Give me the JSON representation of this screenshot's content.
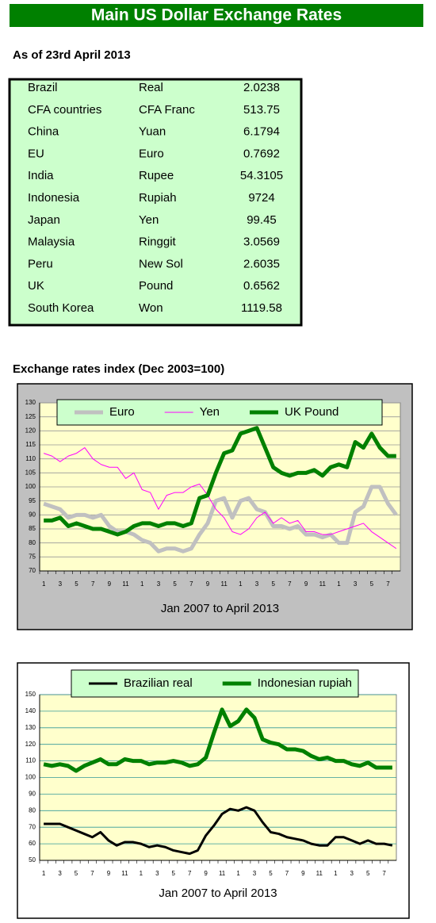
{
  "title": "Main US Dollar Exchange Rates",
  "as_of": "As of 23rd April 2013",
  "table": {
    "rows": [
      [
        "Brazil",
        "Real",
        2.0238
      ],
      [
        "CFA countries",
        "CFA Franc",
        513.75
      ],
      [
        "China",
        "Yuan",
        6.1794
      ],
      [
        "EU",
        "Euro",
        0.7692
      ],
      [
        "India",
        "Rupee",
        54.3105
      ],
      [
        "Indonesia",
        "Rupiah",
        9724
      ],
      [
        "Japan",
        "Yen",
        99.45
      ],
      [
        "Malaysia",
        "Ringgit",
        3.0569
      ],
      [
        "Peru",
        "New Sol",
        2.6035
      ],
      [
        "UK",
        "Pound",
        0.6562
      ],
      [
        "South Korea",
        "Won",
        1119.58
      ]
    ]
  },
  "index_heading": "Exchange rates index (Dec 2003=100)",
  "chart_data": [
    {
      "type": "line",
      "xlabel": "Jan 2007 to April 2013",
      "categories": [
        "1",
        null,
        "3",
        null,
        "5",
        null,
        "7",
        null,
        "9",
        null,
        "11",
        null,
        "1",
        null,
        "3",
        null,
        "5",
        null,
        "7",
        null,
        "9",
        null,
        "11",
        null,
        "1",
        null,
        "3",
        null,
        "5",
        null,
        "7",
        null,
        "9",
        null,
        "11",
        null,
        "1",
        null,
        "3",
        null,
        "5",
        null,
        "7",
        null
      ],
      "series": [
        {
          "name": "Euro",
          "color": "#c0c0c0",
          "values": [
            94,
            93,
            92,
            89,
            90,
            90,
            89,
            90,
            86,
            84,
            84,
            83,
            81,
            80,
            77,
            78,
            78,
            77,
            78,
            83,
            87,
            95,
            96,
            89,
            95,
            96,
            92,
            91,
            86,
            86,
            85,
            86,
            83,
            83,
            82,
            83,
            80,
            80,
            91,
            93,
            100,
            100,
            94,
            90
          ]
        },
        {
          "name": "Yen",
          "color": "#ff00ff",
          "values": [
            112,
            111,
            109,
            111,
            112,
            114,
            110,
            108,
            107,
            107,
            103,
            105,
            99,
            98,
            92,
            97,
            98,
            98,
            100,
            101,
            97,
            92,
            89,
            84,
            83,
            85,
            89,
            91,
            87,
            89,
            87,
            88,
            84,
            84,
            83,
            83,
            84,
            85,
            86,
            87,
            84,
            82,
            80,
            78
          ]
        },
        {
          "name": "UK Pound",
          "color": "#008000",
          "values": [
            88,
            88,
            89,
            86,
            87,
            86,
            85,
            85,
            84,
            83,
            84,
            86,
            87,
            87,
            86,
            87,
            87,
            86,
            87,
            96,
            97,
            105,
            112,
            113,
            119,
            120,
            121,
            114,
            107,
            105,
            104,
            105,
            105,
            106,
            104,
            107,
            108,
            107,
            116,
            114,
            119,
            114,
            111,
            111
          ]
        }
      ],
      "ylim": [
        70,
        130
      ],
      "yticks": [
        70,
        75,
        80,
        85,
        90,
        95,
        100,
        105,
        110,
        115,
        120,
        125,
        130
      ],
      "grid": true,
      "legend": "top"
    },
    {
      "type": "line",
      "xlabel": "Jan 2007 to April 2013",
      "categories": [
        "1",
        null,
        "3",
        null,
        "5",
        null,
        "7",
        null,
        "9",
        null,
        "11",
        null,
        "1",
        null,
        "3",
        null,
        "5",
        null,
        "7",
        null,
        "9",
        null,
        "11",
        null,
        "1",
        null,
        "3",
        null,
        "5",
        null,
        "7",
        null,
        "9",
        null,
        "11",
        null,
        "1",
        null,
        "3",
        null,
        "5",
        null,
        "7",
        null
      ],
      "series": [
        {
          "name": "Brazilian real",
          "color": "#000000",
          "values": [
            72,
            72,
            72,
            70,
            68,
            66,
            64,
            67,
            62,
            59,
            61,
            61,
            60,
            58,
            59,
            58,
            56,
            55,
            54,
            56,
            65,
            71,
            78,
            81,
            80,
            82,
            80,
            73,
            67,
            66,
            64,
            63,
            62,
            60,
            59,
            59,
            64,
            64,
            62,
            60,
            62,
            60,
            60,
            59
          ]
        },
        {
          "name": "Indonesian rupiah",
          "color": "#008000",
          "values": [
            108,
            107,
            108,
            107,
            104,
            107,
            109,
            111,
            108,
            108,
            111,
            110,
            110,
            108,
            109,
            109,
            110,
            109,
            107,
            108,
            112,
            127,
            141,
            131,
            134,
            141,
            136,
            123,
            121,
            120,
            117,
            117,
            116,
            113,
            111,
            112,
            110,
            110,
            108,
            107,
            109,
            106,
            106,
            106
          ]
        }
      ],
      "ylim": [
        50,
        150
      ],
      "yticks": [
        50,
        60,
        70,
        80,
        90,
        100,
        110,
        120,
        130,
        140,
        150
      ],
      "grid": true,
      "legend": "top"
    }
  ]
}
